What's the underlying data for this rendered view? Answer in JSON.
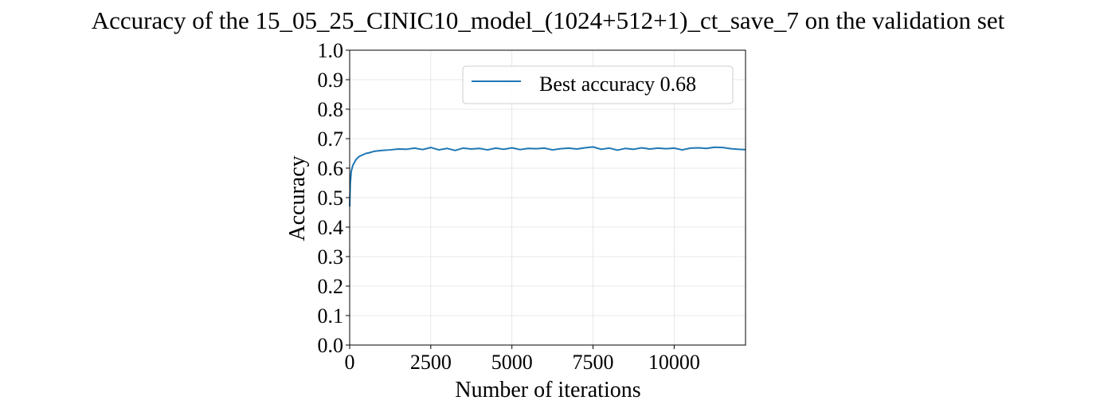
{
  "chart_data": {
    "type": "line",
    "title": "Accuracy of the 15_05_25_CINIC10_model_(1024+512+1)_ct_save_7 on the validation set",
    "xlabel": "Number of iterations",
    "ylabel": "Accuracy",
    "xlim": [
      0,
      12200
    ],
    "ylim": [
      0.0,
      1.0
    ],
    "xticks": [
      0,
      2500,
      5000,
      7500,
      10000
    ],
    "xtick_labels": [
      "0",
      "2500",
      "5000",
      "7500",
      "10000"
    ],
    "yticks": [
      0.0,
      0.1,
      0.2,
      0.3,
      0.4,
      0.5,
      0.6,
      0.7,
      0.8,
      0.9,
      1.0
    ],
    "ytick_labels": [
      "0.0",
      "0.1",
      "0.2",
      "0.3",
      "0.4",
      "0.5",
      "0.6",
      "0.7",
      "0.8",
      "0.9",
      "1.0"
    ],
    "grid": true,
    "legend_position": "top-right",
    "series": [
      {
        "name": "Best accuracy 0.68",
        "color": "#1f77b4",
        "x": [
          0,
          20,
          50,
          100,
          150,
          200,
          300,
          400,
          500,
          600,
          750,
          1000,
          1250,
          1500,
          1750,
          2000,
          2250,
          2500,
          2750,
          3000,
          3250,
          3500,
          3750,
          4000,
          4250,
          4500,
          4750,
          5000,
          5250,
          5500,
          5750,
          6000,
          6250,
          6500,
          6750,
          7000,
          7250,
          7500,
          7750,
          8000,
          8250,
          8500,
          8750,
          9000,
          9250,
          9500,
          9750,
          10000,
          10250,
          10500,
          10750,
          11000,
          11250,
          11500,
          11750,
          12000,
          12200
        ],
        "y": [
          0.47,
          0.55,
          0.59,
          0.61,
          0.62,
          0.63,
          0.64,
          0.645,
          0.65,
          0.652,
          0.657,
          0.66,
          0.662,
          0.665,
          0.664,
          0.668,
          0.663,
          0.67,
          0.662,
          0.667,
          0.66,
          0.668,
          0.665,
          0.667,
          0.662,
          0.668,
          0.664,
          0.669,
          0.663,
          0.667,
          0.666,
          0.668,
          0.662,
          0.666,
          0.668,
          0.665,
          0.669,
          0.672,
          0.664,
          0.668,
          0.661,
          0.667,
          0.664,
          0.669,
          0.665,
          0.668,
          0.666,
          0.668,
          0.662,
          0.668,
          0.669,
          0.667,
          0.671,
          0.67,
          0.666,
          0.664,
          0.663
        ]
      }
    ]
  }
}
